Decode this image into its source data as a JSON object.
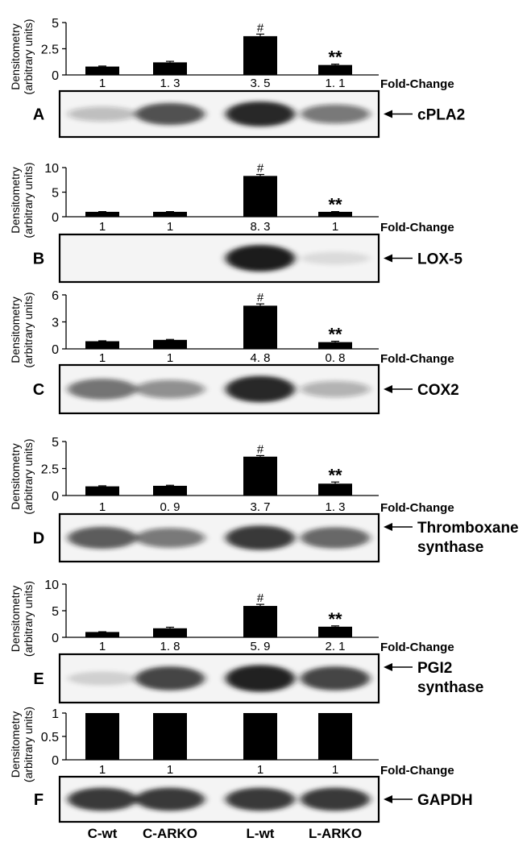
{
  "chart_data": [
    {
      "type": "bar",
      "panel_label": "A",
      "protein": "cPLA2",
      "categories": [
        "C-wt",
        "C-ARKO",
        "L-wt",
        "L-ARKO"
      ],
      "values": [
        0.8,
        1.2,
        3.7,
        0.95
      ],
      "errors": [
        0.05,
        0.1,
        0.2,
        0.08
      ],
      "fold_change": [
        "1",
        "1. 3",
        "3. 5",
        "1. 1"
      ],
      "fold_label": "Fold-Change",
      "ylabel": "Densitometry (arbitrary units)",
      "ylim": [
        0,
        5
      ],
      "yticks": [
        "0",
        "2.5",
        "5"
      ],
      "yticks_values": [
        0,
        2.5,
        5
      ],
      "annotations": [
        {
          "category": "L-wt",
          "text": "#"
        },
        {
          "category": "L-ARKO",
          "text": "**"
        }
      ],
      "blot_intensity": [
        0.25,
        0.75,
        0.95,
        0.55
      ]
    },
    {
      "type": "bar",
      "panel_label": "B",
      "protein": "LOX-5",
      "categories": [
        "C-wt",
        "C-ARKO",
        "L-wt",
        "L-ARKO"
      ],
      "values": [
        1.0,
        1.0,
        8.3,
        1.0
      ],
      "errors": [
        0.05,
        0.05,
        0.3,
        0.05
      ],
      "fold_change": [
        "1",
        "1",
        "8. 3",
        "1"
      ],
      "fold_label": "Fold-Change",
      "ylabel": "Densitometry (arbitrary units)",
      "ylim": [
        0,
        10
      ],
      "yticks": [
        "0",
        "5",
        "10"
      ],
      "yticks_values": [
        0,
        5,
        10
      ],
      "annotations": [
        {
          "category": "L-wt",
          "text": "#"
        },
        {
          "category": "L-ARKO",
          "text": "**"
        }
      ],
      "blot_intensity": [
        0.0,
        0.0,
        1.0,
        0.1
      ]
    },
    {
      "type": "bar",
      "panel_label": "C",
      "protein": "COX2",
      "categories": [
        "C-wt",
        "C-ARKO",
        "L-wt",
        "L-ARKO"
      ],
      "values": [
        0.85,
        1.0,
        4.8,
        0.75
      ],
      "errors": [
        0.05,
        0.05,
        0.2,
        0.1
      ],
      "fold_change": [
        "1",
        "1",
        "4. 8",
        "0. 8"
      ],
      "fold_label": "Fold-Change",
      "ylabel": "Densitometry (arbitrary units)",
      "ylim": [
        0,
        6
      ],
      "yticks": [
        "0",
        "3",
        "6"
      ],
      "yticks_values": [
        0,
        3,
        6
      ],
      "annotations": [
        {
          "category": "L-wt",
          "text": "#"
        },
        {
          "category": "L-ARKO",
          "text": "**"
        }
      ],
      "blot_intensity": [
        0.6,
        0.45,
        0.95,
        0.3
      ]
    },
    {
      "type": "bar",
      "panel_label": "D",
      "protein": "Thromboxane synthase",
      "protein_lines": [
        "Thromboxane",
        "synthase"
      ],
      "categories": [
        "C-wt",
        "C-ARKO",
        "L-wt",
        "L-ARKO"
      ],
      "values": [
        0.85,
        0.9,
        3.6,
        1.1
      ],
      "errors": [
        0.05,
        0.05,
        0.1,
        0.15
      ],
      "fold_change": [
        "1",
        "0. 9",
        "3. 7",
        "1. 3"
      ],
      "fold_label": "Fold-Change",
      "ylabel": "Densitometry (arbitrary units)",
      "ylim": [
        0,
        5
      ],
      "yticks": [
        "0",
        "2.5",
        "5"
      ],
      "yticks_values": [
        0,
        2.5,
        5
      ],
      "annotations": [
        {
          "category": "L-wt",
          "text": "#"
        },
        {
          "category": "L-ARKO",
          "text": "**"
        }
      ],
      "blot_intensity": [
        0.7,
        0.55,
        0.85,
        0.65
      ]
    },
    {
      "type": "bar",
      "panel_label": "E",
      "protein": "PGI2 synthase",
      "protein_lines": [
        "PGI2",
        "synthase"
      ],
      "categories": [
        "C-wt",
        "C-ARKO",
        "L-wt",
        "L-ARKO"
      ],
      "values": [
        1.0,
        1.7,
        5.9,
        2.0
      ],
      "errors": [
        0.05,
        0.2,
        0.3,
        0.15
      ],
      "fold_change": [
        "1",
        "1. 8",
        "5. 9",
        "2. 1"
      ],
      "fold_label": "Fold-Change",
      "ylabel": "Densitometry (arbitrary units)",
      "ylim": [
        0,
        10
      ],
      "yticks": [
        "0",
        "5",
        "10"
      ],
      "yticks_values": [
        0,
        5,
        10
      ],
      "annotations": [
        {
          "category": "L-wt",
          "text": "#"
        },
        {
          "category": "L-ARKO",
          "text": "**"
        }
      ],
      "blot_intensity": [
        0.15,
        0.8,
        0.98,
        0.8
      ]
    },
    {
      "type": "bar",
      "panel_label": "F",
      "protein": "GAPDH",
      "categories": [
        "C-wt",
        "C-ARKO",
        "L-wt",
        "L-ARKO"
      ],
      "values": [
        1,
        1,
        1,
        1
      ],
      "errors": [
        0,
        0,
        0,
        0
      ],
      "fold_change": [
        "1",
        "1",
        "1",
        "1"
      ],
      "fold_label": "Fold-Change",
      "ylabel": "Densitometry (arbitrary units)",
      "ylim": [
        0,
        1
      ],
      "yticks": [
        "0",
        "0.5",
        "1"
      ],
      "yticks_values": [
        0,
        0.5,
        1
      ],
      "annotations": [],
      "blot_intensity": [
        0.85,
        0.85,
        0.85,
        0.85
      ]
    }
  ],
  "colors": {
    "bar": "#000000",
    "axis": "#000000",
    "blot_band": "#1a1a1a",
    "blot_background": "#f4f4f4"
  }
}
